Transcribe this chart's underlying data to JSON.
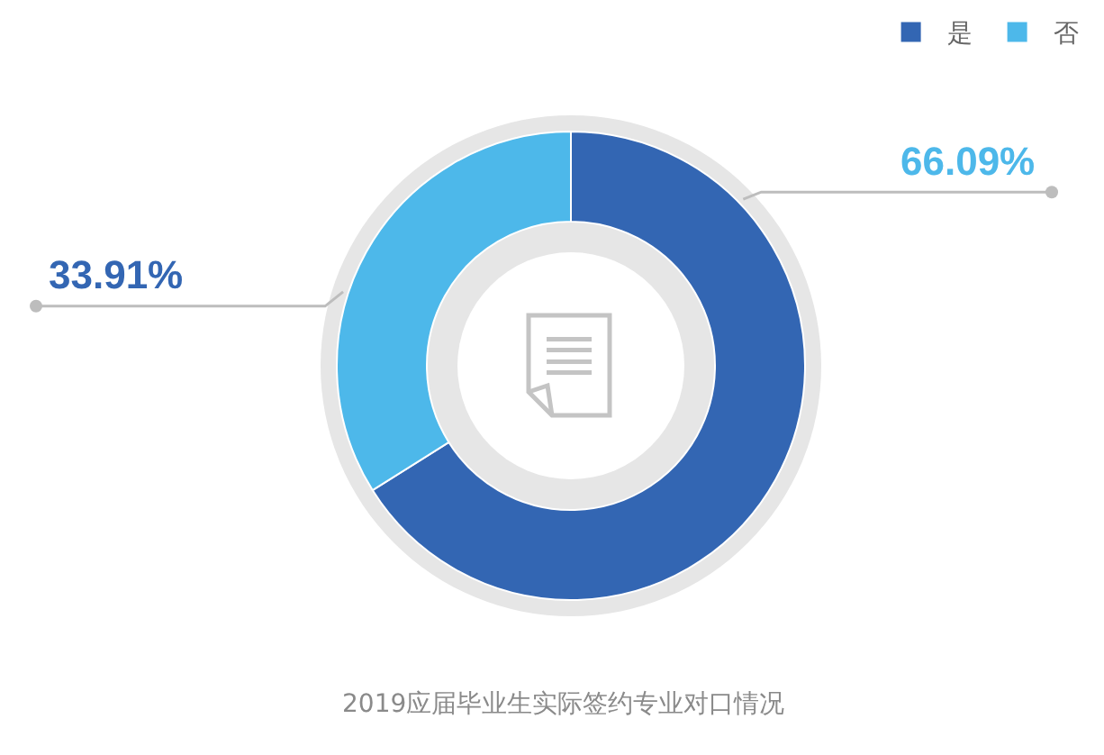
{
  "chart_data": {
    "type": "donut",
    "title": "2019应届毕业生实际签约专业对口情况",
    "categories": [
      "是",
      "否"
    ],
    "values": [
      66.09,
      33.91
    ],
    "colors": [
      "#3366b3",
      "#4db8ea"
    ],
    "value_labels": [
      "66.09%",
      "33.91%"
    ],
    "legend": "top right"
  }
}
